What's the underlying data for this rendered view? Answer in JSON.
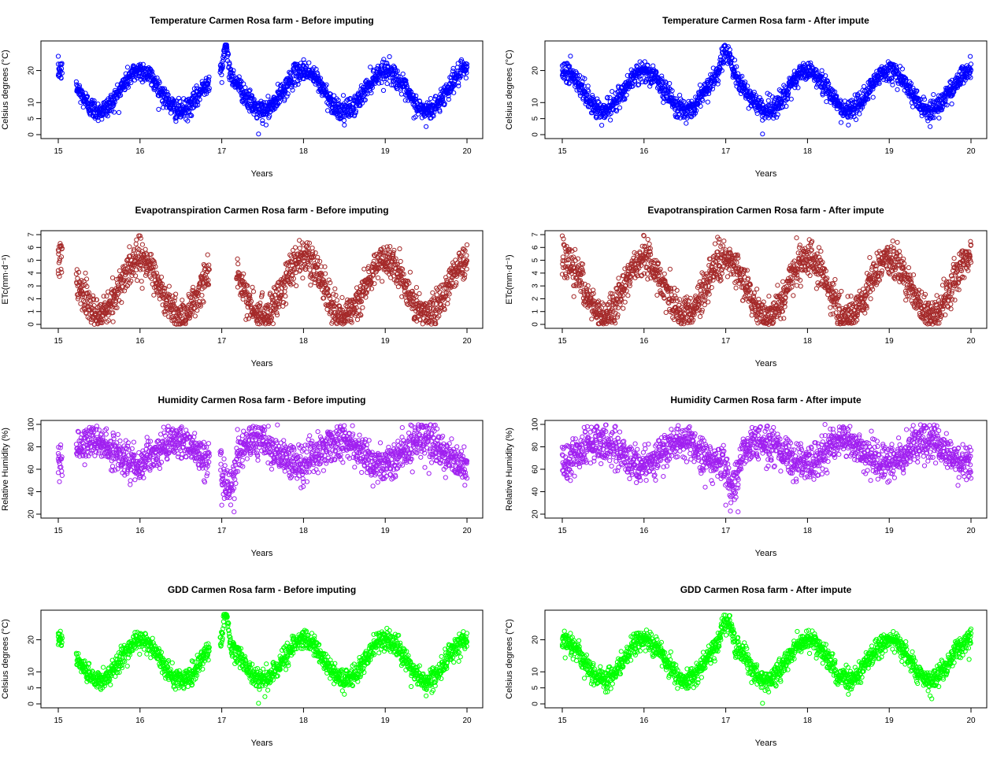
{
  "figure": {
    "title": ""
  },
  "chart_data": [
    {
      "type": "scatter",
      "title": "Temperature Carmen Rosa farm - Before imputing",
      "xlabel": "Years",
      "ylabel": "Celsius degrees (°C)",
      "x_ticks": [
        "15",
        "16",
        "17",
        "18",
        "19",
        "20"
      ],
      "y_ticks": [
        "0",
        "5",
        "10",
        "20"
      ],
      "xlim": [
        15,
        20
      ],
      "ylim": [
        0,
        28
      ],
      "color": "#0000ff",
      "model": {
        "mean": 13.7,
        "amp": 6.3,
        "peak": 0.0,
        "noise": 1.6,
        "gaps": [
          [
            15.05,
            15.22
          ],
          [
            16.85,
            16.98
          ]
        ],
        "spikes": [
          [
            17.0,
            17.1,
            8
          ]
        ],
        "trend": 0
      },
      "points": [
        [
          15.0,
          18.5
        ],
        [
          15.0,
          22.0
        ],
        [
          15.5,
          6.5
        ],
        [
          16.0,
          20.5
        ],
        [
          16.5,
          5.5
        ],
        [
          17.05,
          26.5
        ],
        [
          17.45,
          0.2
        ],
        [
          17.5,
          3.5
        ],
        [
          18.0,
          20
        ],
        [
          18.5,
          3.0
        ],
        [
          19.0,
          20.5
        ],
        [
          19.5,
          2.5
        ],
        [
          20.0,
          22.0
        ]
      ]
    },
    {
      "type": "scatter",
      "title": "Temperature Carmen Rosa farm - After impute",
      "xlabel": "Years",
      "ylabel": "Celsius degrees (°C)",
      "x_ticks": [
        "15",
        "16",
        "17",
        "18",
        "19",
        "20"
      ],
      "y_ticks": [
        "0",
        "5",
        "10",
        "20"
      ],
      "xlim": [
        15,
        20
      ],
      "ylim": [
        0,
        28
      ],
      "color": "#0000ff",
      "model": {
        "mean": 13.7,
        "amp": 6.3,
        "peak": 0.0,
        "noise": 1.6,
        "gaps": [],
        "spikes": [
          [
            16.9,
            17.1,
            6
          ]
        ],
        "trend": 0
      },
      "points": [
        [
          15.0,
          18.5
        ],
        [
          15.1,
          24.5
        ],
        [
          15.5,
          6.5
        ],
        [
          16.0,
          20.5
        ],
        [
          16.5,
          5.5
        ],
        [
          17.05,
          26.5
        ],
        [
          17.45,
          0.2
        ],
        [
          18.0,
          20
        ],
        [
          18.5,
          3.0
        ],
        [
          19.0,
          20.5
        ],
        [
          19.5,
          2.5
        ],
        [
          20.0,
          22.0
        ]
      ]
    },
    {
      "type": "scatter",
      "title": "Evapotranspiration Carmen Rosa farm - Before imputing",
      "xlabel": "Years",
      "ylabel": "ETc(mm·d⁻¹)",
      "x_ticks": [
        "15",
        "16",
        "17",
        "18",
        "19",
        "20"
      ],
      "y_ticks": [
        "0",
        "1",
        "2",
        "3",
        "4",
        "5",
        "6",
        "7"
      ],
      "xlim": [
        15,
        20
      ],
      "ylim": [
        0,
        7
      ],
      "color": "#a52a2a",
      "model": {
        "mean": 2.9,
        "amp": 2.2,
        "peak": 0.0,
        "noise": 0.7,
        "gaps": [
          [
            15.05,
            15.22
          ],
          [
            16.85,
            17.18
          ]
        ],
        "spikes": [],
        "trend": 0
      },
      "points": [
        [
          15.0,
          4.2
        ],
        [
          15.0,
          5.8
        ],
        [
          15.5,
          0.3
        ],
        [
          16.0,
          6.9
        ],
        [
          16.5,
          0.2
        ],
        [
          17.5,
          0.1
        ],
        [
          17.9,
          6.0
        ],
        [
          18.5,
          0.1
        ],
        [
          19.0,
          4.9
        ],
        [
          19.5,
          0.3
        ],
        [
          20.0,
          6.2
        ]
      ]
    },
    {
      "type": "scatter",
      "title": "Evapotranspiration Carmen Rosa farm - After impute",
      "xlabel": "Years",
      "ylabel": "ETc(mm·d⁻¹)",
      "x_ticks": [
        "15",
        "16",
        "17",
        "18",
        "19",
        "20"
      ],
      "y_ticks": [
        "0",
        "1",
        "2",
        "3",
        "4",
        "5",
        "6",
        "7"
      ],
      "xlim": [
        15,
        20
      ],
      "ylim": [
        0,
        7
      ],
      "color": "#a52a2a",
      "model": {
        "mean": 2.9,
        "amp": 2.2,
        "peak": 0.0,
        "noise": 0.7,
        "gaps": [],
        "spikes": [],
        "trend": 0
      },
      "points": [
        [
          15.0,
          6.9
        ],
        [
          15.5,
          0.3
        ],
        [
          16.0,
          6.9
        ],
        [
          16.5,
          0.2
        ],
        [
          16.9,
          6.8
        ],
        [
          17.5,
          0.1
        ],
        [
          17.9,
          6.0
        ],
        [
          18.5,
          0.1
        ],
        [
          19.0,
          4.9
        ],
        [
          19.5,
          0.3
        ],
        [
          20.0,
          6.2
        ]
      ]
    },
    {
      "type": "scatter",
      "title": "Humidity Carmen Rosa farm - Before imputing",
      "xlabel": "Years",
      "ylabel": "Relative Humidity (%)",
      "x_ticks": [
        "15",
        "16",
        "17",
        "18",
        "19",
        "20"
      ],
      "y_ticks": [
        "20",
        "40",
        "60",
        "80",
        "100"
      ],
      "xlim": [
        15,
        20
      ],
      "ylim": [
        20,
        100
      ],
      "color": "#a020f0",
      "model": {
        "mean": 75,
        "amp": 10,
        "peak": 0.45,
        "noise": 8.0,
        "gaps": [
          [
            15.05,
            15.22
          ],
          [
            16.85,
            16.98
          ]
        ],
        "spikes": [
          [
            16.98,
            17.2,
            -25
          ]
        ],
        "trend": 0
      },
      "points": [
        [
          15.0,
          57
        ],
        [
          15.0,
          74
        ],
        [
          15.5,
          95
        ],
        [
          16.4,
          96
        ],
        [
          17.0,
          28
        ],
        [
          17.15,
          22
        ],
        [
          17.5,
          96
        ],
        [
          18.5,
          95
        ],
        [
          19.5,
          92
        ],
        [
          20.0,
          52
        ]
      ]
    },
    {
      "type": "scatter",
      "title": "Humidity Carmen Rosa farm - After impute",
      "xlabel": "Years",
      "ylabel": "Relative Humidity (%)",
      "x_ticks": [
        "15",
        "16",
        "17",
        "18",
        "19",
        "20"
      ],
      "y_ticks": [
        "20",
        "40",
        "60",
        "80",
        "100"
      ],
      "xlim": [
        15,
        20
      ],
      "ylim": [
        20,
        100
      ],
      "color": "#a020f0",
      "model": {
        "mean": 75,
        "amp": 10,
        "peak": 0.45,
        "noise": 8.0,
        "gaps": [],
        "spikes": [
          [
            16.98,
            17.2,
            -25
          ]
        ],
        "trend": 0
      },
      "points": [
        [
          15.0,
          73
        ],
        [
          15.1,
          50
        ],
        [
          15.5,
          95
        ],
        [
          16.4,
          96
        ],
        [
          17.0,
          28
        ],
        [
          17.15,
          22
        ],
        [
          17.5,
          96
        ],
        [
          18.5,
          95
        ],
        [
          19.5,
          92
        ],
        [
          20.0,
          52
        ]
      ]
    },
    {
      "type": "scatter",
      "title": "GDD Carmen Rosa farm - Before imputing",
      "xlabel": "Years",
      "ylabel": "Celsius degrees (°C)",
      "x_ticks": [
        "15",
        "16",
        "17",
        "18",
        "19",
        "20"
      ],
      "y_ticks": [
        "0",
        "5",
        "10",
        "20"
      ],
      "xlim": [
        15,
        20
      ],
      "ylim": [
        0,
        28
      ],
      "color": "#00ff00",
      "model": {
        "mean": 13.7,
        "amp": 6.3,
        "peak": 0.0,
        "noise": 1.6,
        "gaps": [
          [
            15.05,
            15.22
          ],
          [
            16.85,
            16.98
          ]
        ],
        "spikes": [
          [
            17.0,
            17.1,
            8
          ]
        ],
        "trend": 0
      },
      "points": [
        [
          15.0,
          18.5
        ],
        [
          15.0,
          22.0
        ],
        [
          15.5,
          6.5
        ],
        [
          16.0,
          20.5
        ],
        [
          16.5,
          5.5
        ],
        [
          17.05,
          27.5
        ],
        [
          17.45,
          0.2
        ],
        [
          18.0,
          20
        ],
        [
          18.5,
          3.0
        ],
        [
          19.0,
          20.5
        ],
        [
          19.5,
          2.5
        ],
        [
          20.0,
          22.0
        ]
      ]
    },
    {
      "type": "scatter",
      "title": "GDD Carmen Rosa farm - After impute",
      "xlabel": "Years",
      "ylabel": "Celsius degrees (°C)",
      "x_ticks": [
        "15",
        "16",
        "17",
        "18",
        "19",
        "20"
      ],
      "y_ticks": [
        "0",
        "5",
        "10",
        "20"
      ],
      "xlim": [
        15,
        20
      ],
      "ylim": [
        0,
        28
      ],
      "color": "#00ff00",
      "model": {
        "mean": 13.7,
        "amp": 6.3,
        "peak": 0.0,
        "noise": 1.6,
        "gaps": [],
        "spikes": [
          [
            16.9,
            17.1,
            6
          ]
        ],
        "trend": 0
      },
      "points": [
        [
          15.0,
          18.5
        ],
        [
          15.1,
          22.0
        ],
        [
          15.5,
          6.5
        ],
        [
          16.0,
          20.5
        ],
        [
          16.5,
          5.5
        ],
        [
          17.05,
          27.5
        ],
        [
          17.45,
          0.2
        ],
        [
          18.0,
          20
        ],
        [
          18.5,
          3.0
        ],
        [
          19.0,
          20.5
        ],
        [
          19.5,
          2.5
        ],
        [
          20.0,
          22.0
        ]
      ]
    }
  ]
}
